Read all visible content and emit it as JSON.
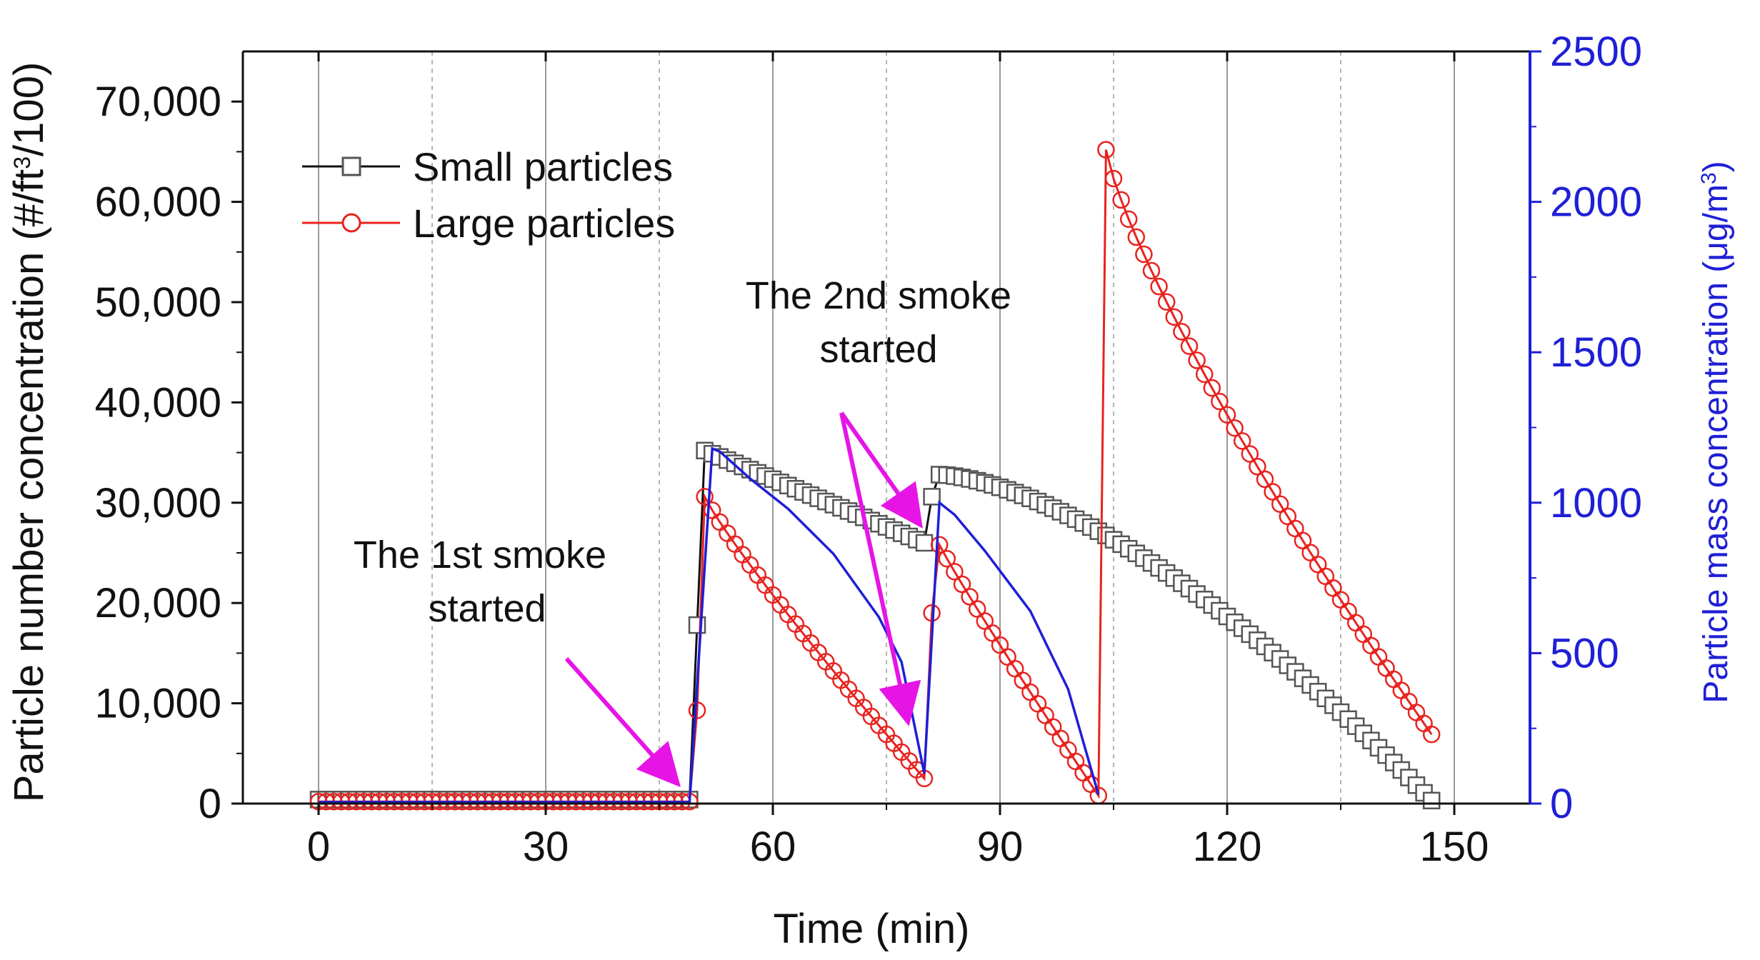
{
  "chart_data": {
    "type": "line",
    "title": "",
    "xlabel": "Time (min)",
    "ylabel_left": {
      "pre": "Particle number concentration (#/ft",
      "sup": "3",
      "post": "/100)"
    },
    "ylabel_right": {
      "pre": "Particle mass concentration (μg/m",
      "sup": "3",
      "post": ")"
    },
    "xlim": [
      -10,
      160
    ],
    "ylim_left": [
      0,
      75000
    ],
    "ylim_right": [
      0,
      2500
    ],
    "x_ticks": [
      0,
      30,
      60,
      90,
      120,
      150
    ],
    "x_tick_labels": [
      "0",
      "30",
      "60",
      "90",
      "120",
      "150"
    ],
    "y_left_ticks": [
      0,
      10000,
      20000,
      30000,
      40000,
      50000,
      60000,
      70000
    ],
    "y_left_tick_labels": [
      "0",
      "10,000",
      "20,000",
      "30,000",
      "40,000",
      "50,000",
      "60,000",
      "70,000"
    ],
    "y_right_ticks": [
      0,
      500,
      1000,
      1500,
      2000,
      2500
    ],
    "y_right_tick_labels": [
      "0",
      "500",
      "1000",
      "1500",
      "2000",
      "2500"
    ],
    "legend": [
      {
        "name": "Small particles",
        "marker": "square",
        "color": "#111111"
      },
      {
        "name": "Large particles",
        "marker": "circle",
        "color": "#e8231f"
      }
    ],
    "series": [
      {
        "name": "Small particles",
        "axis": "left",
        "color": "#111111",
        "marker_color": "#555555",
        "marker": "square",
        "segments": [
          {
            "x_start": 0,
            "x_end": 49,
            "y_start": 400,
            "y_end": 400,
            "step": 1
          },
          {
            "x_start": 50,
            "x_end": 50,
            "y_start": 17800,
            "y_end": 17800,
            "step": 1
          },
          {
            "x_start": 51,
            "x_end": 80,
            "y_start": 35200,
            "y_end": 26000,
            "step": 1
          },
          {
            "x_start": 81,
            "x_end": 81,
            "y_start": 30600,
            "y_end": 30600,
            "step": 1
          },
          {
            "x_start": 82,
            "x_end": 147,
            "y_start": 32800,
            "y_end": 300,
            "step": 1,
            "curve": 1.55
          }
        ]
      },
      {
        "name": "Large particles",
        "axis": "left",
        "color": "#e8231f",
        "marker_color": "#e8231f",
        "marker": "circle",
        "segments": [
          {
            "x_start": 0,
            "x_end": 49,
            "y_start": 200,
            "y_end": 200,
            "step": 1
          },
          {
            "x_start": 50,
            "x_end": 50,
            "y_start": 9300,
            "y_end": 9300,
            "step": 1
          },
          {
            "x_start": 51,
            "x_end": 80,
            "y_start": 30600,
            "y_end": 2500,
            "step": 1,
            "curve": 0.9
          },
          {
            "x_start": 81,
            "x_end": 81,
            "y_start": 19000,
            "y_end": 19000,
            "step": 1
          },
          {
            "x_start": 82,
            "x_end": 103,
            "y_start": 25800,
            "y_end": 800,
            "step": 1,
            "curve": 0.95
          },
          {
            "x_start": 104,
            "x_end": 147,
            "y_start": 65200,
            "y_end": 6900,
            "step": 1,
            "curve": 0.8
          }
        ]
      },
      {
        "name": "Particle mass concentration",
        "axis": "right",
        "color": "#1f1fd6",
        "marker": "none",
        "points": [
          [
            0,
            5
          ],
          [
            49,
            5
          ],
          [
            52,
            1180
          ],
          [
            53,
            1170
          ],
          [
            57,
            1080
          ],
          [
            62,
            980
          ],
          [
            68,
            830
          ],
          [
            74,
            620
          ],
          [
            77,
            470
          ],
          [
            80,
            100
          ],
          [
            82,
            1000
          ],
          [
            84,
            960
          ],
          [
            88,
            840
          ],
          [
            94,
            640
          ],
          [
            99,
            380
          ],
          [
            103,
            30
          ]
        ]
      }
    ],
    "annotations": [
      {
        "lines": [
          "The 1st smoke",
          "started"
        ],
        "arrow_to": [
          49,
          350
        ]
      },
      {
        "lines": [
          "The 2nd smoke",
          "started"
        ],
        "arrow_to": [
          [
            80,
            29200
          ],
          [
            78,
            8500
          ]
        ]
      }
    ],
    "vertical_lines_solid": [
      0,
      30,
      60,
      90,
      120,
      150
    ],
    "vertical_lines_dashed": [
      15,
      45,
      75,
      105,
      135
    ]
  }
}
